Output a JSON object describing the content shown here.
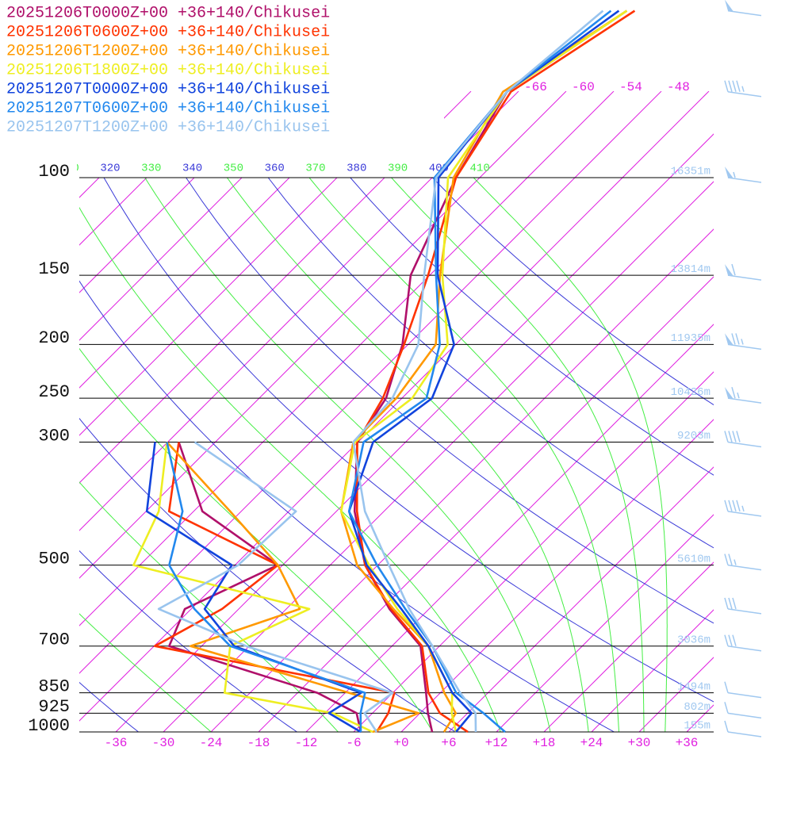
{
  "chart_data": {
    "type": "skew-t",
    "log_scale": true,
    "skew_deg": 45,
    "ylim": [
      1000,
      100
    ],
    "yticks": [
      100,
      150,
      200,
      250,
      300,
      500,
      700,
      850,
      925,
      1000
    ],
    "heights": [
      "16351m",
      "13814m",
      "11935m",
      "10426m",
      "9203m",
      "5610m",
      "3036m",
      "1494m",
      "802m",
      "155m"
    ],
    "xlim": [
      -40.6,
      39.4
    ],
    "xticks": [
      -36,
      -30,
      -24,
      -18,
      -12,
      -6,
      {
        "value": 0,
        "label": "+0"
      },
      {
        "value": 6,
        "label": "+6"
      },
      {
        "value": 12,
        "label": "+12"
      },
      {
        "value": 18,
        "label": "+18"
      },
      {
        "value": 24,
        "label": "+24"
      },
      {
        "value": 30,
        "label": "+30"
      },
      {
        "value": 36,
        "label": "+36"
      }
    ],
    "top_ticks": [
      -66,
      -60,
      -54,
      -48
    ],
    "isotherm_color": "#e020e0",
    "dry_adiabats": {
      "color": "#3a3ad8",
      "values": [
        240,
        260,
        280,
        300,
        320,
        340,
        360,
        380,
        400
      ]
    },
    "moist_adiabats": {
      "color": "#44ee44",
      "values": [
        250,
        270,
        290,
        310,
        330,
        350,
        370,
        390,
        410
      ]
    },
    "pressure_levels": [
      1000,
      925,
      850,
      700,
      600,
      500,
      400,
      300,
      250,
      200,
      150,
      100,
      70,
      50
    ],
    "series": [
      {
        "name": "20251206T0000Z+00 +36+140/Chikusei",
        "color": "#b0106a",
        "temperature": [
          3.9,
          1.0,
          -1.8,
          -8.4,
          -17.0,
          -25.6,
          -33.7,
          -42.1,
          -44.0,
          -48.7,
          -56.4,
          -63.0,
          -67.4,
          -62.5
        ],
        "dewpoint": [
          -5.1,
          -8.0,
          -15.5,
          -40.1,
          -42.8,
          -36.6,
          -52.9,
          -64.6,
          null,
          null,
          null,
          null,
          null,
          null
        ]
      },
      {
        "name": "20251206T0600Z+00 +36+140/Chikusei",
        "color": "#ff3300",
        "temperature": [
          8.4,
          2.5,
          -1.5,
          -8.2,
          -16.8,
          -25.6,
          -33.4,
          -42.1,
          -44.4,
          -48.5,
          -54.2,
          -63.0,
          -66.9,
          -61.5
        ],
        "dewpoint": [
          -3.1,
          -4.0,
          -5.8,
          -41.9,
          -38.1,
          -36.6,
          -57.1,
          -64.6,
          null,
          null,
          null,
          null,
          null,
          null
        ]
      },
      {
        "name": "20251206T1200Z+00 +36+140/Chikusei",
        "color": "#ff9900",
        "temperature": [
          5.4,
          4.5,
          0.5,
          -7.4,
          -16.5,
          -26.6,
          -35.4,
          -42.6,
          -42.7,
          -44.5,
          -52.7,
          -63.3,
          -67.9,
          -62.5
        ],
        "dewpoint": [
          -3.6,
          -0.2,
          -11.5,
          -37.4,
          -28.3,
          -36.6,
          -49.4,
          -66.1,
          null,
          null,
          null,
          null,
          null,
          null
        ]
      },
      {
        "name": "20251206T1800Z+00 +36+140/Chikusei",
        "color": "#eeee22",
        "temperature": [
          6.9,
          4.0,
          1.5,
          -7.4,
          -16.0,
          -25.1,
          -35.4,
          -42.4,
          -40.7,
          -43.0,
          -52.4,
          -64.0,
          -67.4,
          -62.5
        ],
        "dewpoint": [
          -3.6,
          -11.0,
          -27.2,
          -32.4,
          -27.1,
          -54.8,
          -58.4,
          -66.1,
          null,
          null,
          null,
          null,
          null,
          null
        ]
      },
      {
        "name": "20251207T0000Z+00 +36+140/Chikusei",
        "color": "#1144dd",
        "temperature": [
          6.9,
          6.5,
          1.5,
          -7.4,
          -15.5,
          -25.4,
          -34.4,
          -40.1,
          -38.2,
          -42.2,
          -53.0,
          -65.2,
          -67.4,
          -63.5
        ],
        "dewpoint": [
          -5.1,
          -11.5,
          -10.0,
          -31.9,
          -40.3,
          -42.4,
          -59.9,
          -67.6,
          null,
          null,
          null,
          null,
          null,
          null
        ]
      },
      {
        "name": "20251207T0600Z+00 +36+140/Chikusei",
        "color": "#2288ee",
        "temperature": [
          13.1,
          8.0,
          2.0,
          -6.9,
          -15.0,
          -24.1,
          -34.4,
          -41.3,
          -38.9,
          -44.0,
          -53.2,
          -65.7,
          -67.4,
          -64.5
        ],
        "dewpoint": [
          -5.1,
          -7.5,
          -9.5,
          -32.4,
          -41.6,
          -50.3,
          -55.4,
          -66.1,
          null,
          null,
          null,
          null,
          null,
          null
        ]
      },
      {
        "name": "20251207T1200Z+00 +36+140/Chikusei",
        "color": "#99c4ee",
        "temperature": [
          9.4,
          7.0,
          2.5,
          -6.9,
          -14.5,
          -22.6,
          -32.4,
          -42.6,
          -43.2,
          -46.7,
          -54.7,
          -65.5,
          -67.4,
          -65.5
        ],
        "dewpoint": [
          -3.1,
          -7.0,
          -6.0,
          -30.4,
          -46.1,
          -41.6,
          -41.1,
          -62.6,
          null,
          null,
          null,
          null,
          null,
          null
        ]
      }
    ],
    "wind": {
      "color": "#a0c8f0",
      "pressure": [
        50,
        70,
        100,
        150,
        200,
        250,
        300,
        400,
        500,
        600,
        700,
        850,
        925,
        1000
      ],
      "speed": [
        50,
        45,
        55,
        60,
        75,
        65,
        40,
        45,
        25,
        30,
        30,
        10,
        10,
        10
      ]
    }
  }
}
